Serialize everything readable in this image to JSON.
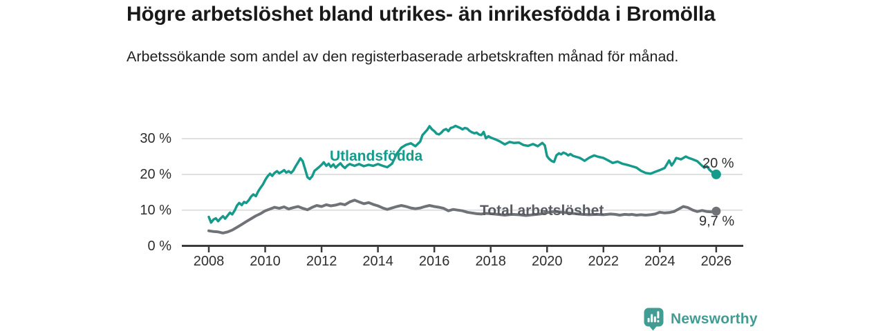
{
  "chart_data": {
    "type": "line",
    "title": "Högre arbetslöshet bland utrikes- än inrikesfödda i Bromölla",
    "subtitle": "Arbetssökande som andel av den registerbaserade arbetskraften månad för månad.",
    "grid": "horizontal-only",
    "legend_position": "inline-labels-on-lines",
    "colors": {
      "grid_line": "#d9d9d9",
      "axis_line": "#3a3a3a",
      "tick_text": "#2e2e2e"
    },
    "x_axis": {
      "min": 2007.05,
      "max": 2026.95,
      "ticks": [
        2008,
        2010,
        2012,
        2014,
        2016,
        2018,
        2020,
        2022,
        2024,
        2026
      ]
    },
    "y_axis": {
      "min": 0,
      "max": 36.5,
      "ticks": [
        {
          "value": 0,
          "label": "0 %"
        },
        {
          "value": 10,
          "label": "10 %"
        },
        {
          "value": 20,
          "label": "20 %"
        },
        {
          "value": 30,
          "label": "30 %"
        }
      ]
    },
    "series": [
      {
        "name": "Utlandsfödda",
        "color": "#169a8c",
        "label_color": "#169a8c",
        "end_label": "20 %",
        "end_value": 20.0,
        "points": [
          [
            2008.0,
            8.1
          ],
          [
            2008.08,
            6.5
          ],
          [
            2008.17,
            7.4
          ],
          [
            2008.25,
            7.7
          ],
          [
            2008.33,
            6.9
          ],
          [
            2008.42,
            7.7
          ],
          [
            2008.5,
            8.3
          ],
          [
            2008.58,
            7.6
          ],
          [
            2008.67,
            8.5
          ],
          [
            2008.75,
            9.3
          ],
          [
            2008.83,
            8.8
          ],
          [
            2008.92,
            9.9
          ],
          [
            2009.0,
            11.3
          ],
          [
            2009.08,
            12.0
          ],
          [
            2009.17,
            11.4
          ],
          [
            2009.25,
            12.3
          ],
          [
            2009.33,
            12.0
          ],
          [
            2009.42,
            12.8
          ],
          [
            2009.5,
            13.8
          ],
          [
            2009.58,
            14.4
          ],
          [
            2009.67,
            13.9
          ],
          [
            2009.75,
            15.2
          ],
          [
            2009.83,
            16.2
          ],
          [
            2009.92,
            17.2
          ],
          [
            2010.0,
            18.4
          ],
          [
            2010.08,
            19.4
          ],
          [
            2010.17,
            20.2
          ],
          [
            2010.25,
            19.6
          ],
          [
            2010.33,
            20.4
          ],
          [
            2010.42,
            20.9
          ],
          [
            2010.5,
            20.3
          ],
          [
            2010.58,
            20.7
          ],
          [
            2010.67,
            21.2
          ],
          [
            2010.75,
            20.5
          ],
          [
            2010.83,
            20.9
          ],
          [
            2010.92,
            20.4
          ],
          [
            2011.0,
            21.1
          ],
          [
            2011.08,
            22.3
          ],
          [
            2011.17,
            23.4
          ],
          [
            2011.25,
            24.5
          ],
          [
            2011.33,
            23.7
          ],
          [
            2011.42,
            21.4
          ],
          [
            2011.5,
            19.2
          ],
          [
            2011.58,
            18.7
          ],
          [
            2011.67,
            19.5
          ],
          [
            2011.75,
            21.0
          ],
          [
            2011.83,
            21.5
          ],
          [
            2011.92,
            22.1
          ],
          [
            2012.0,
            22.7
          ],
          [
            2012.08,
            23.4
          ],
          [
            2012.17,
            22.4
          ],
          [
            2012.25,
            23.0
          ],
          [
            2012.33,
            22.1
          ],
          [
            2012.42,
            22.8
          ],
          [
            2012.5,
            21.9
          ],
          [
            2012.58,
            22.5
          ],
          [
            2012.67,
            23.1
          ],
          [
            2012.75,
            22.3
          ],
          [
            2012.83,
            21.8
          ],
          [
            2012.92,
            22.5
          ],
          [
            2013.0,
            22.9
          ],
          [
            2013.17,
            22.4
          ],
          [
            2013.33,
            22.9
          ],
          [
            2013.5,
            22.3
          ],
          [
            2013.67,
            22.7
          ],
          [
            2013.83,
            22.4
          ],
          [
            2014.0,
            22.9
          ],
          [
            2014.17,
            22.4
          ],
          [
            2014.33,
            22.0
          ],
          [
            2014.5,
            23.0
          ],
          [
            2014.58,
            24.3
          ],
          [
            2014.67,
            25.8
          ],
          [
            2014.83,
            27.5
          ],
          [
            2015.0,
            28.3
          ],
          [
            2015.17,
            28.7
          ],
          [
            2015.33,
            27.9
          ],
          [
            2015.5,
            29.2
          ],
          [
            2015.58,
            31.0
          ],
          [
            2015.75,
            32.5
          ],
          [
            2015.83,
            33.5
          ],
          [
            2015.92,
            32.6
          ],
          [
            2016.0,
            32.1
          ],
          [
            2016.08,
            31.4
          ],
          [
            2016.17,
            31.2
          ],
          [
            2016.25,
            31.7
          ],
          [
            2016.33,
            32.4
          ],
          [
            2016.42,
            32.7
          ],
          [
            2016.5,
            32.1
          ],
          [
            2016.58,
            33.0
          ],
          [
            2016.67,
            33.2
          ],
          [
            2016.75,
            33.6
          ],
          [
            2016.83,
            33.3
          ],
          [
            2016.92,
            33.0
          ],
          [
            2017.0,
            32.6
          ],
          [
            2017.08,
            33.0
          ],
          [
            2017.17,
            32.8
          ],
          [
            2017.25,
            32.2
          ],
          [
            2017.33,
            31.8
          ],
          [
            2017.42,
            31.5
          ],
          [
            2017.5,
            31.7
          ],
          [
            2017.58,
            31.2
          ],
          [
            2017.67,
            31.0
          ],
          [
            2017.75,
            31.9
          ],
          [
            2017.83,
            30.1
          ],
          [
            2017.92,
            30.7
          ],
          [
            2018.0,
            30.3
          ],
          [
            2018.17,
            29.8
          ],
          [
            2018.33,
            29.2
          ],
          [
            2018.5,
            28.4
          ],
          [
            2018.67,
            29.1
          ],
          [
            2018.83,
            28.8
          ],
          [
            2019.0,
            28.9
          ],
          [
            2019.17,
            28.2
          ],
          [
            2019.33,
            28.0
          ],
          [
            2019.5,
            28.5
          ],
          [
            2019.67,
            27.9
          ],
          [
            2019.83,
            28.8
          ],
          [
            2019.92,
            28.1
          ],
          [
            2020.0,
            25.1
          ],
          [
            2020.08,
            24.3
          ],
          [
            2020.17,
            23.7
          ],
          [
            2020.25,
            23.5
          ],
          [
            2020.33,
            25.3
          ],
          [
            2020.42,
            25.9
          ],
          [
            2020.5,
            25.6
          ],
          [
            2020.58,
            26.1
          ],
          [
            2020.67,
            25.8
          ],
          [
            2020.75,
            25.3
          ],
          [
            2020.83,
            25.7
          ],
          [
            2020.92,
            25.2
          ],
          [
            2021.0,
            25.0
          ],
          [
            2021.17,
            24.6
          ],
          [
            2021.33,
            23.8
          ],
          [
            2021.5,
            24.7
          ],
          [
            2021.67,
            25.3
          ],
          [
            2021.83,
            24.9
          ],
          [
            2022.0,
            24.6
          ],
          [
            2022.17,
            23.9
          ],
          [
            2022.33,
            23.2
          ],
          [
            2022.5,
            23.6
          ],
          [
            2022.67,
            23.0
          ],
          [
            2022.83,
            22.7
          ],
          [
            2023.0,
            22.3
          ],
          [
            2023.17,
            21.9
          ],
          [
            2023.33,
            21.0
          ],
          [
            2023.5,
            20.4
          ],
          [
            2023.67,
            20.2
          ],
          [
            2023.83,
            20.7
          ],
          [
            2024.0,
            21.2
          ],
          [
            2024.17,
            21.8
          ],
          [
            2024.33,
            23.9
          ],
          [
            2024.42,
            22.5
          ],
          [
            2024.5,
            23.4
          ],
          [
            2024.58,
            24.6
          ],
          [
            2024.75,
            24.2
          ],
          [
            2024.92,
            25.0
          ],
          [
            2025.0,
            24.7
          ],
          [
            2025.17,
            24.2
          ],
          [
            2025.33,
            23.7
          ],
          [
            2025.5,
            22.4
          ],
          [
            2025.58,
            21.9
          ],
          [
            2025.67,
            22.3
          ],
          [
            2025.75,
            21.4
          ],
          [
            2025.83,
            20.8
          ],
          [
            2026.0,
            20.0
          ]
        ]
      },
      {
        "name": "Total arbetslöshet",
        "color": "#6f7277",
        "label_color": "#585c62",
        "end_label": "9,7 %",
        "end_value": 9.7,
        "points": [
          [
            2008.0,
            4.2
          ],
          [
            2008.17,
            4.0
          ],
          [
            2008.33,
            3.9
          ],
          [
            2008.5,
            3.6
          ],
          [
            2008.67,
            3.9
          ],
          [
            2008.83,
            4.4
          ],
          [
            2009.0,
            5.2
          ],
          [
            2009.17,
            6.0
          ],
          [
            2009.33,
            6.8
          ],
          [
            2009.5,
            7.6
          ],
          [
            2009.67,
            8.4
          ],
          [
            2009.83,
            9.0
          ],
          [
            2010.0,
            9.8
          ],
          [
            2010.17,
            10.3
          ],
          [
            2010.33,
            10.8
          ],
          [
            2010.5,
            10.5
          ],
          [
            2010.67,
            10.9
          ],
          [
            2010.83,
            10.3
          ],
          [
            2011.0,
            10.7
          ],
          [
            2011.17,
            11.0
          ],
          [
            2011.33,
            10.5
          ],
          [
            2011.5,
            10.1
          ],
          [
            2011.67,
            10.8
          ],
          [
            2011.83,
            11.3
          ],
          [
            2012.0,
            11.0
          ],
          [
            2012.17,
            11.5
          ],
          [
            2012.33,
            11.2
          ],
          [
            2012.5,
            11.4
          ],
          [
            2012.67,
            11.8
          ],
          [
            2012.83,
            11.5
          ],
          [
            2013.0,
            12.3
          ],
          [
            2013.17,
            12.8
          ],
          [
            2013.33,
            12.3
          ],
          [
            2013.5,
            11.8
          ],
          [
            2013.67,
            12.1
          ],
          [
            2013.83,
            11.6
          ],
          [
            2014.0,
            11.2
          ],
          [
            2014.17,
            10.6
          ],
          [
            2014.33,
            10.2
          ],
          [
            2014.5,
            10.6
          ],
          [
            2014.67,
            11.0
          ],
          [
            2014.83,
            11.3
          ],
          [
            2015.0,
            11.0
          ],
          [
            2015.17,
            10.6
          ],
          [
            2015.33,
            10.4
          ],
          [
            2015.5,
            10.6
          ],
          [
            2015.67,
            11.0
          ],
          [
            2015.83,
            11.3
          ],
          [
            2016.0,
            11.0
          ],
          [
            2016.17,
            10.8
          ],
          [
            2016.33,
            10.5
          ],
          [
            2016.5,
            9.8
          ],
          [
            2016.67,
            10.2
          ],
          [
            2016.83,
            10.0
          ],
          [
            2017.0,
            9.8
          ],
          [
            2017.17,
            9.4
          ],
          [
            2017.33,
            9.2
          ],
          [
            2017.5,
            9.0
          ],
          [
            2017.67,
            8.9
          ],
          [
            2017.83,
            9.1
          ],
          [
            2018.0,
            9.0
          ],
          [
            2018.25,
            8.8
          ],
          [
            2018.5,
            8.6
          ],
          [
            2018.75,
            8.8
          ],
          [
            2019.0,
            8.7
          ],
          [
            2019.25,
            8.5
          ],
          [
            2019.5,
            8.7
          ],
          [
            2019.75,
            8.9
          ],
          [
            2020.0,
            9.3
          ],
          [
            2020.25,
            9.6
          ],
          [
            2020.5,
            9.4
          ],
          [
            2020.75,
            9.2
          ],
          [
            2021.0,
            9.0
          ],
          [
            2021.25,
            8.8
          ],
          [
            2021.5,
            8.7
          ],
          [
            2021.75,
            8.8
          ],
          [
            2022.0,
            8.7
          ],
          [
            2022.25,
            8.9
          ],
          [
            2022.42,
            8.8
          ],
          [
            2022.58,
            8.6
          ],
          [
            2022.75,
            8.8
          ],
          [
            2022.92,
            8.7
          ],
          [
            2023.0,
            8.8
          ],
          [
            2023.17,
            8.6
          ],
          [
            2023.33,
            8.7
          ],
          [
            2023.5,
            8.6
          ],
          [
            2023.67,
            8.7
          ],
          [
            2023.83,
            8.9
          ],
          [
            2024.0,
            9.4
          ],
          [
            2024.17,
            9.2
          ],
          [
            2024.33,
            9.3
          ],
          [
            2024.5,
            9.6
          ],
          [
            2024.67,
            10.3
          ],
          [
            2024.83,
            11.0
          ],
          [
            2025.0,
            10.7
          ],
          [
            2025.17,
            10.0
          ],
          [
            2025.33,
            9.6
          ],
          [
            2025.5,
            9.9
          ],
          [
            2025.67,
            9.6
          ],
          [
            2025.83,
            9.5
          ],
          [
            2026.0,
            9.7
          ]
        ]
      }
    ]
  },
  "footer": {
    "brand": "Newsworthy",
    "logo_icon": "bar-chart-speech-bubble-icon",
    "brand_color": "#419c94"
  }
}
